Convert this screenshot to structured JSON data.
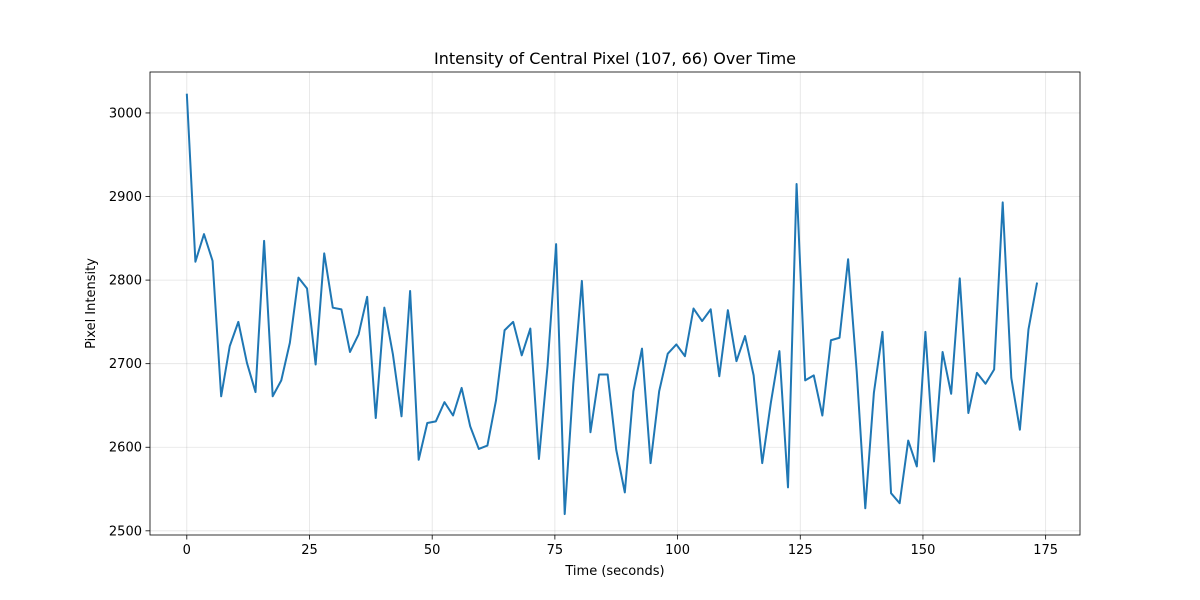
{
  "chart_data": {
    "type": "line",
    "title": "Intensity of Central Pixel (107, 66) Over Time",
    "xlabel": "Time (seconds)",
    "ylabel": "Pixel Intensity",
    "xlim": [
      -7.5,
      182
    ],
    "ylim": [
      2495,
      3049
    ],
    "xticks": [
      0,
      25,
      50,
      75,
      100,
      125,
      150,
      175
    ],
    "yticks": [
      2500,
      2600,
      2700,
      2800,
      2900,
      3000
    ],
    "grid": true,
    "legend": "none",
    "series": [
      {
        "color": "#1f77b4",
        "x_step": 1.75,
        "values": [
          3023,
          2822,
          2855,
          2823,
          2661,
          2721,
          2750,
          2701,
          2666,
          2847,
          2661,
          2680,
          2725,
          2803,
          2790,
          2699,
          2832,
          2767,
          2765,
          2714,
          2735,
          2780,
          2635,
          2767,
          2711,
          2637,
          2787,
          2585,
          2629,
          2631,
          2654,
          2638,
          2671,
          2625,
          2598,
          2602,
          2656,
          2740,
          2750,
          2710,
          2742,
          2586,
          2697,
          2843,
          2520,
          2676,
          2799,
          2618,
          2687,
          2687,
          2597,
          2546,
          2667,
          2718,
          2581,
          2667,
          2712,
          2723,
          2709,
          2766,
          2751,
          2765,
          2685,
          2764,
          2703,
          2733,
          2686,
          2581,
          2653,
          2715,
          2552,
          2915,
          2680,
          2686,
          2638,
          2728,
          2731,
          2825,
          2691,
          2527,
          2665,
          2738,
          2545,
          2533,
          2608,
          2577,
          2738,
          2583,
          2714,
          2664,
          2802,
          2641,
          2689,
          2676,
          2693,
          2893,
          2683,
          2621,
          2741,
          2797
        ]
      }
    ]
  }
}
